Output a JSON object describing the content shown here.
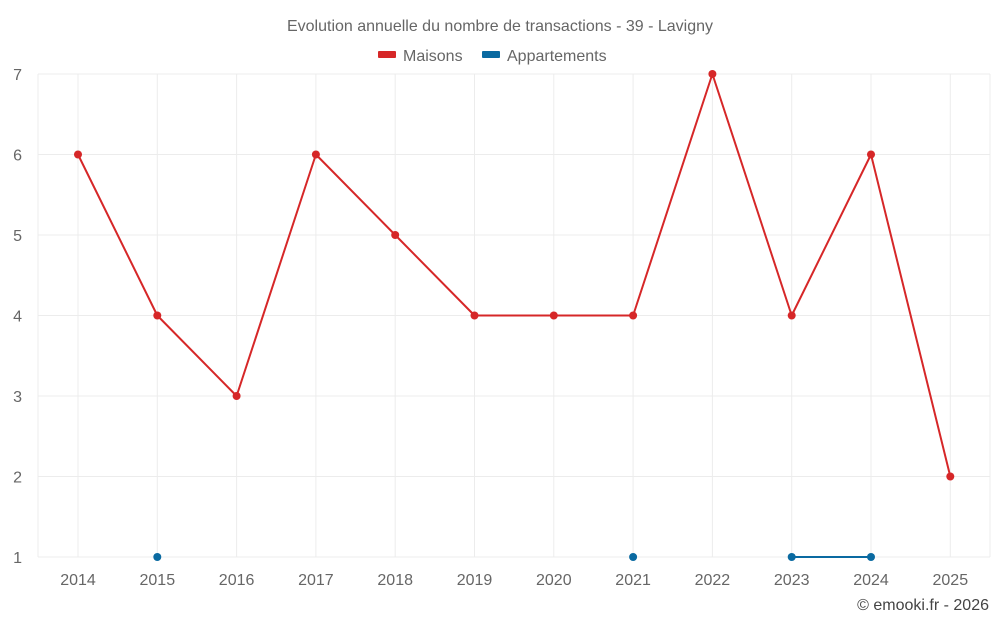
{
  "chart_data": {
    "type": "line",
    "title": "Evolution annuelle du nombre de transactions - 39 - Lavigny",
    "categories": [
      "2014",
      "2015",
      "2016",
      "2017",
      "2018",
      "2019",
      "2020",
      "2021",
      "2022",
      "2023",
      "2024",
      "2025"
    ],
    "ylim": [
      1,
      7
    ],
    "yticks": [
      "1",
      "2",
      "3",
      "4",
      "5",
      "6",
      "7"
    ],
    "grid": true,
    "legend_position": "top-center",
    "series": [
      {
        "name": "Maisons",
        "color": "#d62728",
        "values": [
          6,
          4,
          3,
          6,
          5,
          4,
          4,
          4,
          7,
          4,
          6,
          2
        ]
      },
      {
        "name": "Appartements",
        "color": "#0a6aa1",
        "values": [
          null,
          1,
          null,
          null,
          null,
          null,
          null,
          1,
          null,
          1,
          1,
          null
        ]
      }
    ],
    "credit": "© emooki.fr - 2026"
  }
}
